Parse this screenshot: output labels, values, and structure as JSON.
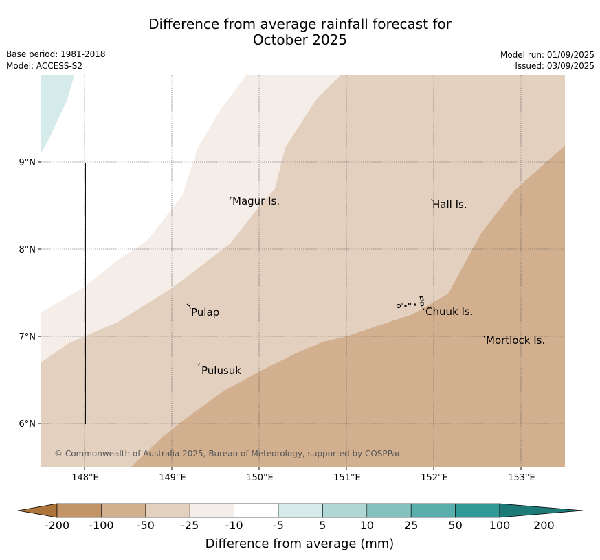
{
  "title": {
    "line1": "Difference from average rainfall forecast for",
    "line2": "October 2025"
  },
  "meta_left": {
    "base_period": "Base period: 1981-2018",
    "model": "Model: ACCESS-S2"
  },
  "meta_right": {
    "model_run": "Model run: 01/09/2025",
    "issued": "Issued: 03/09/2025"
  },
  "map": {
    "lat_ticks": [
      "9°N",
      "8°N",
      "7°N",
      "6°N"
    ],
    "lon_ticks": [
      "148°E",
      "149°E",
      "150°E",
      "151°E",
      "152°E",
      "153°E"
    ],
    "places": [
      "Magur Is.",
      "Hall Is.",
      "Pulap",
      "Chuuk Is.",
      "Mortlock Is.",
      "Pulusuk"
    ],
    "copyright": "© Commonwealth of Australia 2025, Bureau of Meteorology, supported by COSPPac"
  },
  "colorbar": {
    "labels": [
      "-200",
      "-100",
      "-50",
      "-25",
      "-10",
      "-5",
      "5",
      "10",
      "25",
      "50",
      "100",
      "200"
    ],
    "colors": [
      "#ad7539",
      "#c29467",
      "#d2b08f",
      "#e3d0bf",
      "#f4ede8",
      "#ffffff",
      "#d5ebe9",
      "#aed7d5",
      "#85c1bf",
      "#5aaeab",
      "#319a97",
      "#1d7a77"
    ],
    "title": "Difference from average (mm)"
  }
}
